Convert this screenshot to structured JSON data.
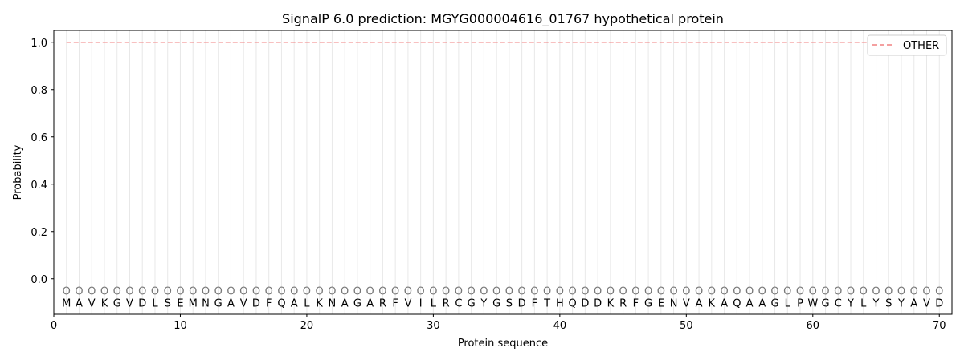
{
  "chart_data": {
    "type": "line",
    "title": "SignalP 6.0 prediction: MGYG000004616_01767 hypothetical protein",
    "xlabel": "Protein sequence",
    "ylabel": "Probability",
    "xlim": [
      0,
      71
    ],
    "ylim": [
      -0.15,
      1.05
    ],
    "xticks": [
      0,
      10,
      20,
      30,
      40,
      50,
      60,
      70
    ],
    "yticks": [
      0.0,
      0.2,
      0.4,
      0.6,
      0.8,
      1.0
    ],
    "grid": "vertical lines at each residue",
    "legend_position": "top-right",
    "sequence": [
      "M",
      "A",
      "V",
      "K",
      "G",
      "V",
      "D",
      "L",
      "S",
      "E",
      "M",
      "N",
      "G",
      "A",
      "V",
      "D",
      "F",
      "Q",
      "A",
      "L",
      "K",
      "N",
      "A",
      "G",
      "A",
      "R",
      "F",
      "V",
      "I",
      "L",
      "R",
      "C",
      "G",
      "Y",
      "G",
      "S",
      "D",
      "F",
      "T",
      "H",
      "Q",
      "D",
      "D",
      "K",
      "R",
      "F",
      "G",
      "E",
      "N",
      "V",
      "A",
      "K",
      "A",
      "Q",
      "A",
      "A",
      "G",
      "L",
      "P",
      "W",
      "G",
      "C",
      "Y",
      "L",
      "Y",
      "S",
      "Y",
      "A",
      "V",
      "D"
    ],
    "predicted_label": "O",
    "series": [
      {
        "name": "OTHER",
        "color": "#f08080",
        "style": "dashed",
        "x_range": [
          1,
          70
        ],
        "value": 1.0
      }
    ]
  }
}
